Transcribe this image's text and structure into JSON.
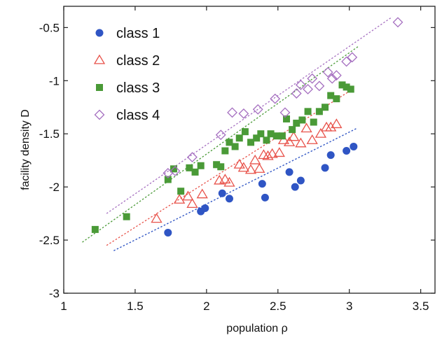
{
  "chart_data": {
    "type": "scatter",
    "xlabel": "population ρ",
    "ylabel": "facility density D",
    "xlim": [
      1,
      3.6
    ],
    "ylim": [
      -3,
      -0.3
    ],
    "xticks": [
      1,
      1.5,
      2,
      2.5,
      3,
      3.5
    ],
    "yticks": [
      -0.5,
      -1,
      -1.5,
      -2,
      -2.5,
      -3
    ],
    "xtick_labels": [
      "1",
      "1.5",
      "2",
      "2.5",
      "3",
      "3.5"
    ],
    "ytick_labels": [
      "-0.5",
      "-1",
      "-1.5",
      "-2",
      "-2.5",
      "-3"
    ],
    "grid": false,
    "legend_position": "top-left",
    "series": [
      {
        "name": "class 1",
        "marker": "circle",
        "color": "#2f55c4",
        "x": [
          1.73,
          1.96,
          1.99,
          2.11,
          2.16,
          2.39,
          2.41,
          2.58,
          2.62,
          2.66,
          2.83,
          2.87,
          2.98,
          3.03
        ],
        "y": [
          -2.43,
          -2.23,
          -2.2,
          -2.06,
          -2.11,
          -1.97,
          -2.1,
          -1.86,
          -2.0,
          -1.94,
          -1.82,
          -1.7,
          -1.66,
          -1.62
        ],
        "fit": {
          "x": [
            1.35,
            3.05
          ],
          "y": [
            -2.6,
            -1.45
          ]
        }
      },
      {
        "name": "class 2",
        "marker": "triangle",
        "color": "#e8524a",
        "x": [
          1.65,
          1.81,
          1.87,
          1.9,
          1.97,
          2.09,
          2.13,
          2.16,
          2.23,
          2.26,
          2.31,
          2.34,
          2.37,
          2.4,
          2.43,
          2.46,
          2.51,
          2.54,
          2.58,
          2.61,
          2.66,
          2.7,
          2.74,
          2.8,
          2.84,
          2.87,
          2.91
        ],
        "y": [
          -2.3,
          -2.12,
          -2.09,
          -2.16,
          -2.07,
          -1.94,
          -1.93,
          -1.96,
          -1.79,
          -1.82,
          -1.84,
          -1.75,
          -1.83,
          -1.7,
          -1.71,
          -1.69,
          -1.68,
          -1.56,
          -1.58,
          -1.53,
          -1.59,
          -1.45,
          -1.56,
          -1.5,
          -1.44,
          -1.44,
          -1.41
        ],
        "fit": {
          "x": [
            1.3,
            3.0
          ],
          "y": [
            -2.55,
            -1.1
          ]
        }
      },
      {
        "name": "class 3",
        "marker": "square",
        "color": "#4a9a37",
        "x": [
          1.22,
          1.44,
          1.73,
          1.77,
          1.82,
          1.88,
          1.92,
          1.96,
          2.07,
          2.1,
          2.13,
          2.16,
          2.2,
          2.23,
          2.27,
          2.31,
          2.35,
          2.38,
          2.42,
          2.45,
          2.49,
          2.53,
          2.56,
          2.6,
          2.63,
          2.67,
          2.71,
          2.75,
          2.79,
          2.83,
          2.87,
          2.91,
          2.95,
          2.98,
          3.01
        ],
        "y": [
          -2.4,
          -2.28,
          -1.93,
          -1.83,
          -2.04,
          -1.82,
          -1.86,
          -1.8,
          -1.79,
          -1.81,
          -1.66,
          -1.58,
          -1.62,
          -1.54,
          -1.48,
          -1.58,
          -1.54,
          -1.5,
          -1.56,
          -1.5,
          -1.52,
          -1.52,
          -1.36,
          -1.46,
          -1.4,
          -1.37,
          -1.29,
          -1.39,
          -1.29,
          -1.25,
          -1.14,
          -1.17,
          -1.04,
          -1.06,
          -1.08
        ],
        "fit": {
          "x": [
            1.13,
            3.06
          ],
          "y": [
            -2.52,
            -0.68
          ]
        }
      },
      {
        "name": "class 4",
        "marker": "diamond",
        "color": "#a56fc0",
        "x": [
          1.73,
          1.78,
          1.9,
          2.1,
          2.18,
          2.26,
          2.36,
          2.48,
          2.55,
          2.63,
          2.66,
          2.71,
          2.74,
          2.79,
          2.85,
          2.88,
          2.91,
          2.98,
          3.02,
          3.34
        ],
        "y": [
          -1.87,
          -1.85,
          -1.72,
          -1.51,
          -1.3,
          -1.31,
          -1.27,
          -1.17,
          -1.3,
          -1.12,
          -1.04,
          -1.08,
          -0.98,
          -1.05,
          -0.92,
          -0.98,
          -0.95,
          -0.82,
          -0.78,
          -0.45
        ],
        "fit": {
          "x": [
            1.3,
            3.3
          ],
          "y": [
            -2.25,
            -0.4
          ]
        }
      }
    ]
  }
}
